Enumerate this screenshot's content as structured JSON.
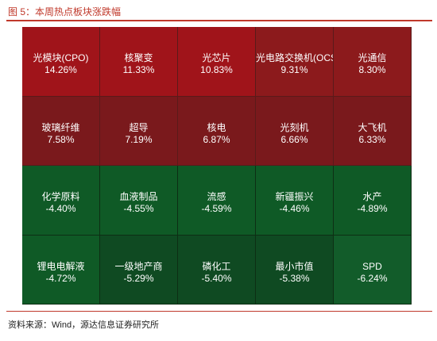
{
  "header": {
    "title": "图 5：本周热点板块涨跌幅"
  },
  "footer": {
    "source": "资料来源：Wind，源达信息证券研究所"
  },
  "colors": {
    "gain_strong": "#a0141a",
    "gain_mid": "#8c1a1c",
    "gain_low": "#7a191c",
    "loss_strong": "#0f4a22",
    "loss_mid": "#0f5a26",
    "loss_low": "#125c2a",
    "accent": "#c0392b"
  },
  "chart_data": {
    "type": "heatmap",
    "title": "",
    "rows": 4,
    "cols": 5,
    "cells": [
      {
        "name": "光模块(CPO)",
        "value": 14.26,
        "label": "14.26%"
      },
      {
        "name": "核聚变",
        "value": 11.33,
        "label": "11.33%"
      },
      {
        "name": "光芯片",
        "value": 10.83,
        "label": "10.83%"
      },
      {
        "name": "光电路交换机(OCS",
        "value": 9.31,
        "label": "9.31%"
      },
      {
        "name": "光通信",
        "value": 8.3,
        "label": "8.30%"
      },
      {
        "name": "玻璃纤维",
        "value": 7.58,
        "label": "7.58%"
      },
      {
        "name": "超导",
        "value": 7.19,
        "label": "7.19%"
      },
      {
        "name": "核电",
        "value": 6.87,
        "label": "6.87%"
      },
      {
        "name": "光刻机",
        "value": 6.66,
        "label": "6.66%"
      },
      {
        "name": "大飞机",
        "value": 6.33,
        "label": "6.33%"
      },
      {
        "name": "化学原料",
        "value": -4.4,
        "label": "-4.40%"
      },
      {
        "name": "血液制品",
        "value": -4.55,
        "label": "-4.55%"
      },
      {
        "name": "流感",
        "value": -4.59,
        "label": "-4.59%"
      },
      {
        "name": "新疆振兴",
        "value": -4.46,
        "label": "-4.46%"
      },
      {
        "name": "水产",
        "value": -4.89,
        "label": "-4.89%"
      },
      {
        "name": "锂电电解液",
        "value": -4.72,
        "label": "-4.72%"
      },
      {
        "name": "一级地产商",
        "value": -5.29,
        "label": "-5.29%"
      },
      {
        "name": "磷化工",
        "value": -5.4,
        "label": "-5.40%"
      },
      {
        "name": "最小市值",
        "value": -5.38,
        "label": "-5.38%"
      },
      {
        "name": "SPD",
        "value": -6.24,
        "label": "-6.24%"
      }
    ]
  }
}
